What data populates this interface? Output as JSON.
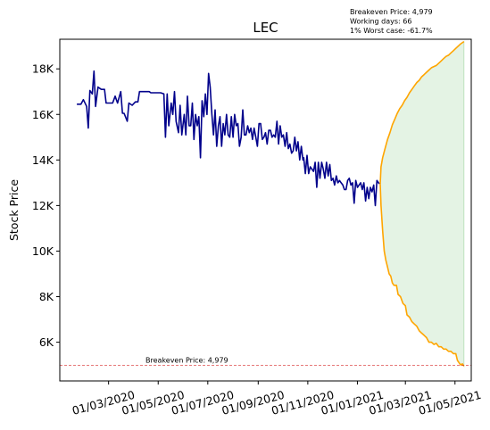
{
  "chart_data": {
    "type": "line",
    "title": "LEC",
    "ylabel": "Stock Price",
    "xlabel": "",
    "ylim": [
      4300,
      19300
    ],
    "xlim": [
      "2020-01-01",
      "2021-05-21"
    ],
    "y_ticks": [
      {
        "value": 6000,
        "label": "6K"
      },
      {
        "value": 8000,
        "label": "8K"
      },
      {
        "value": 10000,
        "label": "10K"
      },
      {
        "value": 12000,
        "label": "12K"
      },
      {
        "value": 14000,
        "label": "14K"
      },
      {
        "value": 16000,
        "label": "16K"
      },
      {
        "value": 18000,
        "label": "18K"
      }
    ],
    "x_ticks": [
      {
        "value": "2020-03-01",
        "label": "01/03/2020"
      },
      {
        "value": "2020-05-01",
        "label": "01/05/2020"
      },
      {
        "value": "2020-07-01",
        "label": "01/07/2020"
      },
      {
        "value": "2020-09-01",
        "label": "01/09/2020"
      },
      {
        "value": "2020-11-01",
        "label": "01/11/2020"
      },
      {
        "value": "2021-01-01",
        "label": "01/01/2021"
      },
      {
        "value": "2021-03-01",
        "label": "01/03/2021"
      },
      {
        "value": "2021-05-01",
        "label": "01/05/2021"
      }
    ],
    "grid": false,
    "breakeven": {
      "value": 4979,
      "label": "Breakeven Price: 4,979",
      "color": "#d62728"
    },
    "info_lines": [
      "Breakeven Price: 4,979",
      "Working days: 66",
      "1% Worst case: -61.7%"
    ],
    "series": [
      {
        "color": "#00008b",
        "points": [
          [
            "2020-01-22",
            16450
          ],
          [
            "2020-01-27",
            16450
          ],
          [
            "2020-01-30",
            16650
          ],
          [
            "2020-02-03",
            16350
          ],
          [
            "2020-02-05",
            15400
          ],
          [
            "2020-02-07",
            17050
          ],
          [
            "2020-02-10",
            16900
          ],
          [
            "2020-02-12",
            17900
          ],
          [
            "2020-02-14",
            16350
          ],
          [
            "2020-02-17",
            17200
          ],
          [
            "2020-02-21",
            17100
          ],
          [
            "2020-02-25",
            17100
          ],
          [
            "2020-02-27",
            16500
          ],
          [
            "2020-03-06",
            16500
          ],
          [
            "2020-03-09",
            16800
          ],
          [
            "2020-03-12",
            16500
          ],
          [
            "2020-03-16",
            17000
          ],
          [
            "2020-03-18",
            16050
          ],
          [
            "2020-03-20",
            16050
          ],
          [
            "2020-03-24",
            15700
          ],
          [
            "2020-03-26",
            16500
          ],
          [
            "2020-03-30",
            16400
          ],
          [
            "2020-04-03",
            16550
          ],
          [
            "2020-04-06",
            16550
          ],
          [
            "2020-04-08",
            17000
          ],
          [
            "2020-04-20",
            17000
          ],
          [
            "2020-04-22",
            16950
          ],
          [
            "2020-05-04",
            16950
          ],
          [
            "2020-05-08",
            16900
          ],
          [
            "2020-05-10",
            15000
          ],
          [
            "2020-05-12",
            16900
          ],
          [
            "2020-05-14",
            15500
          ],
          [
            "2020-05-17",
            16500
          ],
          [
            "2020-05-19",
            16000
          ],
          [
            "2020-05-21",
            17000
          ],
          [
            "2020-05-23",
            15700
          ],
          [
            "2020-05-26",
            15200
          ],
          [
            "2020-05-28",
            16400
          ],
          [
            "2020-05-30",
            15100
          ],
          [
            "2020-06-02",
            16000
          ],
          [
            "2020-06-04",
            15100
          ],
          [
            "2020-06-06",
            16800
          ],
          [
            "2020-06-08",
            15500
          ],
          [
            "2020-06-10",
            15500
          ],
          [
            "2020-06-12",
            16500
          ],
          [
            "2020-06-14",
            14900
          ],
          [
            "2020-06-16",
            16000
          ],
          [
            "2020-06-18",
            15500
          ],
          [
            "2020-06-20",
            15900
          ],
          [
            "2020-06-22",
            14100
          ],
          [
            "2020-06-24",
            16600
          ],
          [
            "2020-06-26",
            15900
          ],
          [
            "2020-06-28",
            16900
          ],
          [
            "2020-06-30",
            16000
          ],
          [
            "2020-07-02",
            17800
          ],
          [
            "2020-07-04",
            17200
          ],
          [
            "2020-07-06",
            16000
          ],
          [
            "2020-07-08",
            15100
          ],
          [
            "2020-07-10",
            16200
          ],
          [
            "2020-07-12",
            14600
          ],
          [
            "2020-07-14",
            15500
          ],
          [
            "2020-07-16",
            15900
          ],
          [
            "2020-07-18",
            14600
          ],
          [
            "2020-07-20",
            15600
          ],
          [
            "2020-07-22",
            15100
          ],
          [
            "2020-07-24",
            16000
          ],
          [
            "2020-07-26",
            15100
          ],
          [
            "2020-07-28",
            15000
          ],
          [
            "2020-07-30",
            15900
          ],
          [
            "2020-08-01",
            15000
          ],
          [
            "2020-08-03",
            16000
          ],
          [
            "2020-08-05",
            15500
          ],
          [
            "2020-08-07",
            15600
          ],
          [
            "2020-08-09",
            14600
          ],
          [
            "2020-08-11",
            15000
          ],
          [
            "2020-08-13",
            16200
          ],
          [
            "2020-08-15",
            15100
          ],
          [
            "2020-08-17",
            15100
          ],
          [
            "2020-08-19",
            15500
          ],
          [
            "2020-08-21",
            15200
          ],
          [
            "2020-08-23",
            15400
          ],
          [
            "2020-08-25",
            14900
          ],
          [
            "2020-08-27",
            15400
          ],
          [
            "2020-08-29",
            15000
          ],
          [
            "2020-08-31",
            14600
          ],
          [
            "2020-09-02",
            15600
          ],
          [
            "2020-09-04",
            15600
          ],
          [
            "2020-09-06",
            14900
          ],
          [
            "2020-09-08",
            15000
          ],
          [
            "2020-09-10",
            15200
          ],
          [
            "2020-09-12",
            14700
          ],
          [
            "2020-09-14",
            15300
          ],
          [
            "2020-09-16",
            15300
          ],
          [
            "2020-09-18",
            15000
          ],
          [
            "2020-09-20",
            15100
          ],
          [
            "2020-09-22",
            15000
          ],
          [
            "2020-09-24",
            15700
          ],
          [
            "2020-09-26",
            14700
          ],
          [
            "2020-09-28",
            15500
          ],
          [
            "2020-09-30",
            15000
          ],
          [
            "2020-10-02",
            15100
          ],
          [
            "2020-10-04",
            14600
          ],
          [
            "2020-10-06",
            15200
          ],
          [
            "2020-10-08",
            14500
          ],
          [
            "2020-10-10",
            14700
          ],
          [
            "2020-10-12",
            14300
          ],
          [
            "2020-10-14",
            14400
          ],
          [
            "2020-10-16",
            15000
          ],
          [
            "2020-10-18",
            14400
          ],
          [
            "2020-10-20",
            14800
          ],
          [
            "2020-10-22",
            14000
          ],
          [
            "2020-10-24",
            14600
          ],
          [
            "2020-10-26",
            14000
          ],
          [
            "2020-10-27",
            14100
          ],
          [
            "2020-10-29",
            13400
          ],
          [
            "2020-10-31",
            14200
          ],
          [
            "2020-11-02",
            13400
          ],
          [
            "2020-11-04",
            13700
          ],
          [
            "2020-11-06",
            13600
          ],
          [
            "2020-11-08",
            13500
          ],
          [
            "2020-11-10",
            13900
          ],
          [
            "2020-11-12",
            12800
          ],
          [
            "2020-11-14",
            13900
          ],
          [
            "2020-11-16",
            13200
          ],
          [
            "2020-11-18",
            13900
          ],
          [
            "2020-11-20",
            13600
          ],
          [
            "2020-11-22",
            13200
          ],
          [
            "2020-11-24",
            13900
          ],
          [
            "2020-11-26",
            13300
          ],
          [
            "2020-11-28",
            13800
          ],
          [
            "2020-11-30",
            13100
          ],
          [
            "2020-12-02",
            13200
          ],
          [
            "2020-12-04",
            12900
          ],
          [
            "2020-12-06",
            13300
          ],
          [
            "2020-12-08",
            13000
          ],
          [
            "2020-12-10",
            13100
          ],
          [
            "2020-12-12",
            13000
          ],
          [
            "2020-12-14",
            12900
          ],
          [
            "2020-12-16",
            12700
          ],
          [
            "2020-12-18",
            12700
          ],
          [
            "2020-12-20",
            13100
          ],
          [
            "2020-12-22",
            13200
          ],
          [
            "2020-12-24",
            12900
          ],
          [
            "2020-12-26",
            13000
          ],
          [
            "2020-12-28",
            12100
          ],
          [
            "2020-12-30",
            13100
          ],
          [
            "2021-01-01",
            12800
          ],
          [
            "2021-01-03",
            12900
          ],
          [
            "2021-01-05",
            13000
          ],
          [
            "2021-01-07",
            12700
          ],
          [
            "2021-01-09",
            13000
          ],
          [
            "2021-01-11",
            12200
          ],
          [
            "2021-01-13",
            12800
          ],
          [
            "2021-01-15",
            12300
          ],
          [
            "2021-01-17",
            12800
          ],
          [
            "2021-01-19",
            12600
          ],
          [
            "2021-01-21",
            12900
          ],
          [
            "2021-01-23",
            12000
          ],
          [
            "2021-01-25",
            13100
          ],
          [
            "2021-01-28",
            12950
          ]
        ]
      },
      {
        "color": "#ffa500",
        "points": [
          [
            "2021-01-29",
            12950
          ],
          [
            "2021-01-30",
            13700
          ],
          [
            "2021-02-01",
            14100
          ],
          [
            "2021-02-04",
            14500
          ],
          [
            "2021-02-07",
            14900
          ],
          [
            "2021-02-10",
            15200
          ],
          [
            "2021-02-13",
            15550
          ],
          [
            "2021-02-16",
            15800
          ],
          [
            "2021-02-19",
            16050
          ],
          [
            "2021-02-22",
            16250
          ],
          [
            "2021-02-25",
            16400
          ],
          [
            "2021-02-28",
            16600
          ],
          [
            "2021-03-03",
            16750
          ],
          [
            "2021-03-06",
            16950
          ],
          [
            "2021-03-09",
            17100
          ],
          [
            "2021-03-12",
            17250
          ],
          [
            "2021-03-15",
            17400
          ],
          [
            "2021-03-18",
            17500
          ],
          [
            "2021-03-21",
            17650
          ],
          [
            "2021-03-24",
            17750
          ],
          [
            "2021-03-27",
            17850
          ],
          [
            "2021-03-30",
            17950
          ],
          [
            "2021-04-02",
            18050
          ],
          [
            "2021-04-05",
            18100
          ],
          [
            "2021-04-08",
            18150
          ],
          [
            "2021-04-11",
            18250
          ],
          [
            "2021-04-14",
            18350
          ],
          [
            "2021-04-17",
            18450
          ],
          [
            "2021-04-20",
            18550
          ],
          [
            "2021-04-23",
            18600
          ],
          [
            "2021-04-26",
            18700
          ],
          [
            "2021-04-29",
            18800
          ],
          [
            "2021-05-02",
            18900
          ],
          [
            "2021-05-05",
            19000
          ],
          [
            "2021-05-08",
            19100
          ],
          [
            "2021-05-12",
            19200
          ]
        ]
      },
      {
        "color": "#ffa500",
        "points": [
          [
            "2021-01-29",
            12950
          ],
          [
            "2021-01-30",
            12000
          ],
          [
            "2021-02-01",
            10900
          ],
          [
            "2021-02-03",
            10000
          ],
          [
            "2021-02-05",
            9600
          ],
          [
            "2021-02-07",
            9300
          ],
          [
            "2021-02-09",
            9000
          ],
          [
            "2021-02-11",
            8900
          ],
          [
            "2021-02-13",
            8600
          ],
          [
            "2021-02-15",
            8500
          ],
          [
            "2021-02-18",
            8500
          ],
          [
            "2021-02-20",
            8100
          ],
          [
            "2021-02-23",
            8000
          ],
          [
            "2021-02-26",
            7700
          ],
          [
            "2021-03-01",
            7600
          ],
          [
            "2021-03-03",
            7200
          ],
          [
            "2021-03-06",
            7100
          ],
          [
            "2021-03-09",
            6900
          ],
          [
            "2021-03-12",
            6800
          ],
          [
            "2021-03-15",
            6700
          ],
          [
            "2021-03-18",
            6500
          ],
          [
            "2021-03-21",
            6400
          ],
          [
            "2021-03-24",
            6300
          ],
          [
            "2021-03-27",
            6200
          ],
          [
            "2021-03-30",
            6000
          ],
          [
            "2021-04-02",
            6000
          ],
          [
            "2021-04-05",
            5900
          ],
          [
            "2021-04-08",
            5950
          ],
          [
            "2021-04-11",
            5800
          ],
          [
            "2021-04-14",
            5800
          ],
          [
            "2021-04-17",
            5700
          ],
          [
            "2021-04-20",
            5700
          ],
          [
            "2021-04-23",
            5600
          ],
          [
            "2021-04-26",
            5600
          ],
          [
            "2021-04-29",
            5500
          ],
          [
            "2021-05-02",
            5500
          ],
          [
            "2021-05-04",
            5200
          ],
          [
            "2021-05-06",
            5100
          ],
          [
            "2021-05-08",
            5000
          ],
          [
            "2021-05-10",
            5050
          ],
          [
            "2021-05-12",
            4950
          ]
        ]
      }
    ],
    "fill_band": {
      "color": "#2ca02c",
      "opacity": 0.13
    }
  }
}
